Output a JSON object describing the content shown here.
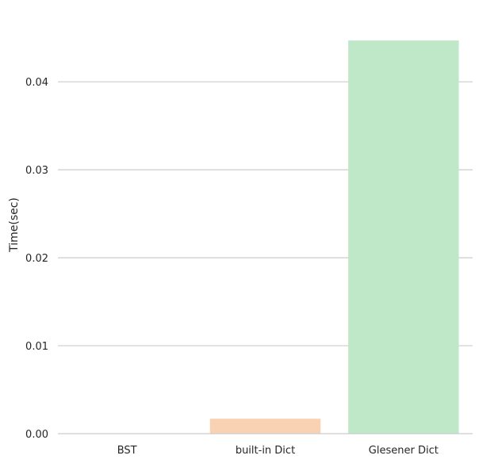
{
  "chart_data": {
    "type": "bar",
    "categories": [
      "BST",
      "built-in Dict",
      "Glesener Dict"
    ],
    "values": [
      0.0,
      0.0017,
      0.0447
    ],
    "colors": [
      "#abc9ea",
      "#f9d1b3",
      "#bfe8c8"
    ],
    "ylabel": "Time(sec)",
    "xlabel": "",
    "ylim": [
      0,
      0.0475
    ],
    "yticks": [
      0.0,
      0.01,
      0.02,
      0.03,
      0.04
    ],
    "ytick_labels": [
      "0.00",
      "0.01",
      "0.02",
      "0.03",
      "0.04"
    ],
    "grid": "horizontal",
    "grid_color": "#cccccc",
    "text_color": "#262626"
  }
}
